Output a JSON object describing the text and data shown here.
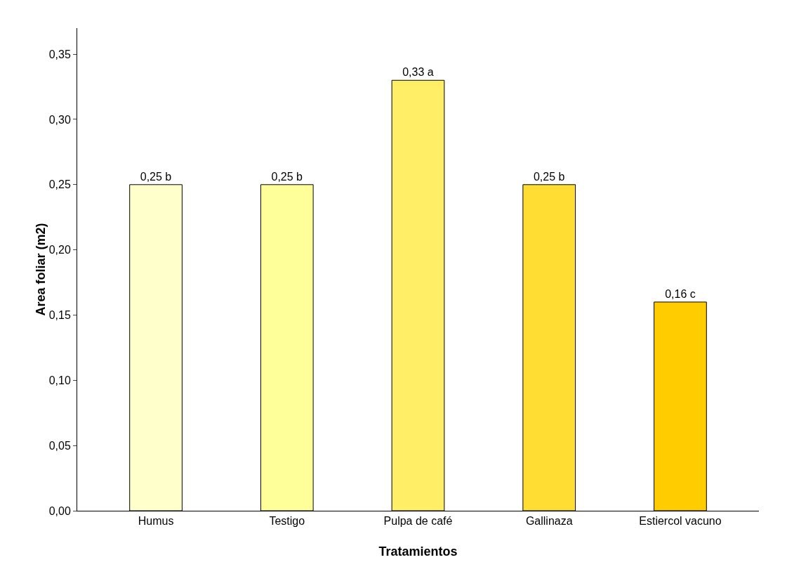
{
  "chart_data": {
    "type": "bar",
    "xlabel": "Tratamientos",
    "ylabel": "Area foliar (m2)",
    "categories": [
      "Humus",
      "Testigo",
      "Pulpa de café",
      "Gallinaza",
      "Estiercol vacuno"
    ],
    "values": [
      0.25,
      0.25,
      0.33,
      0.25,
      0.16
    ],
    "value_labels": [
      "0,25 b",
      "0,25 b",
      "0,33 a",
      "0,25 b",
      "0,16 c"
    ],
    "colors": [
      "#ffffcc",
      "#ffff99",
      "#ffee66",
      "#ffdd33",
      "#ffcc00"
    ],
    "ylim": [
      0,
      0.37
    ],
    "yticks": [
      {
        "value": 0,
        "label": "0,00"
      },
      {
        "value": 0.05,
        "label": "0,05"
      },
      {
        "value": 0.1,
        "label": "0,10"
      },
      {
        "value": 0.15,
        "label": "0,15"
      },
      {
        "value": 0.2,
        "label": "0,20"
      },
      {
        "value": 0.25,
        "label": "0,25"
      },
      {
        "value": 0.3,
        "label": "0,30"
      },
      {
        "value": 0.35,
        "label": "0,35"
      }
    ],
    "grid": false
  }
}
